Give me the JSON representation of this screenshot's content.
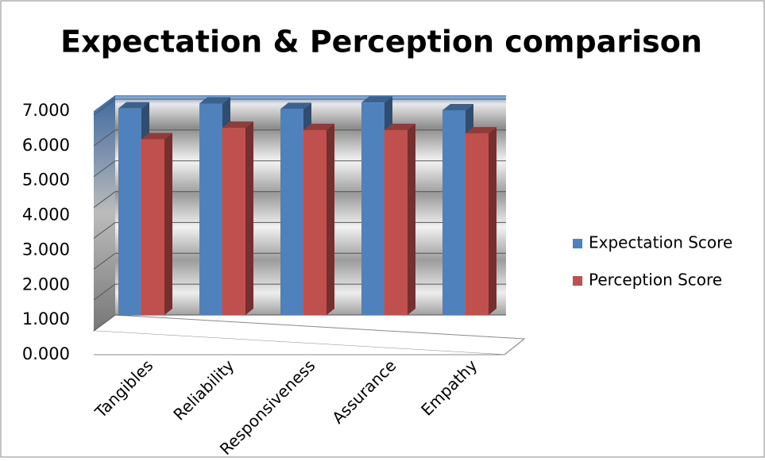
{
  "chart_data": {
    "type": "bar3d",
    "title": "Expectation & Perception comparison",
    "categories": [
      "Tangibles",
      "Reliability",
      "Responsiveness",
      "Assurance",
      "Empathy"
    ],
    "series": [
      {
        "name": "Expectation Score",
        "color": "#4f81bd",
        "values": [
          6.7,
          6.86,
          6.68,
          6.89,
          6.64
        ]
      },
      {
        "name": "Perception Score",
        "color": "#c0504d",
        "values": [
          5.7,
          6.07,
          6.0,
          6.0,
          5.89
        ]
      }
    ],
    "ylim": [
      0,
      7
    ],
    "yticks": [
      {
        "value": 0,
        "label": "0.000"
      },
      {
        "value": 1,
        "label": "1.000"
      },
      {
        "value": 2,
        "label": "2.000"
      },
      {
        "value": 3,
        "label": "3.000"
      },
      {
        "value": 4,
        "label": "4.000"
      },
      {
        "value": 5,
        "label": "5.000"
      },
      {
        "value": 6,
        "label": "6.000"
      },
      {
        "value": 7,
        "label": "7.000"
      }
    ],
    "grid": true,
    "legend": "right"
  }
}
